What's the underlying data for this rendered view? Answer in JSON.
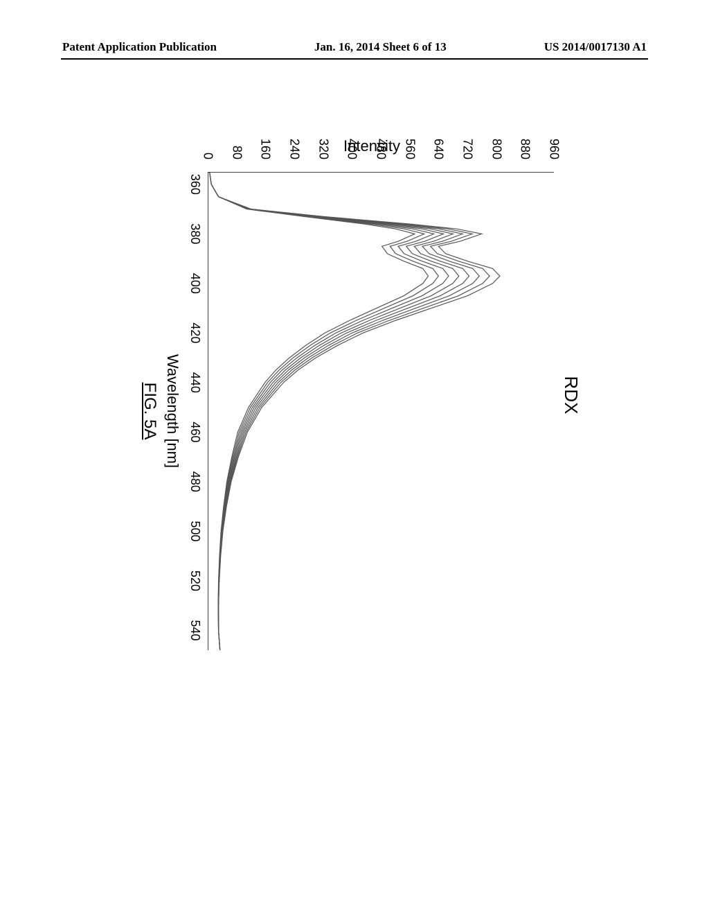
{
  "header": {
    "left": "Patent Application Publication",
    "center": "Jan. 16, 2014  Sheet 6 of 13",
    "right": "US 2014/0017130 A1"
  },
  "chart": {
    "type": "line",
    "title": "RDX",
    "xlabel": "Wavelength [nm]",
    "ylabel": "Intensity",
    "figure_caption": "FIG. 5A",
    "xlim": [
      355,
      548
    ],
    "ylim": [
      0,
      960
    ],
    "xtick_values": [
      360,
      380,
      400,
      420,
      440,
      460,
      480,
      500,
      520,
      540
    ],
    "ytick_values": [
      0,
      80,
      160,
      240,
      320,
      400,
      480,
      560,
      640,
      720,
      800,
      880,
      960
    ],
    "line_color": "#555555",
    "line_width": 1.2,
    "background_color": "#ffffff",
    "axis_color": "#000000",
    "label_fontsize": 22,
    "tick_fontsize": 18,
    "title_fontsize": 26,
    "series": [
      {
        "scale": 1.0,
        "x": [
          355,
          360,
          365,
          370,
          373,
          376,
          378,
          380,
          383,
          385,
          388,
          391,
          394,
          397,
          400,
          405,
          410,
          415,
          420,
          425,
          430,
          435,
          440,
          450,
          460,
          470,
          480,
          490,
          500,
          510,
          520,
          530,
          540,
          548
        ],
        "y": [
          5,
          10,
          30,
          120,
          320,
          560,
          690,
          760,
          700,
          640,
          660,
          720,
          790,
          810,
          790,
          720,
          620,
          520,
          430,
          360,
          300,
          250,
          210,
          150,
          110,
          85,
          65,
          52,
          42,
          36,
          32,
          30,
          30,
          34
        ]
      },
      {
        "scale": 0.965
      },
      {
        "scale": 0.93
      },
      {
        "scale": 0.895
      },
      {
        "scale": 0.86
      },
      {
        "scale": 0.825
      },
      {
        "scale": 0.79
      },
      {
        "scale": 0.755
      }
    ]
  }
}
